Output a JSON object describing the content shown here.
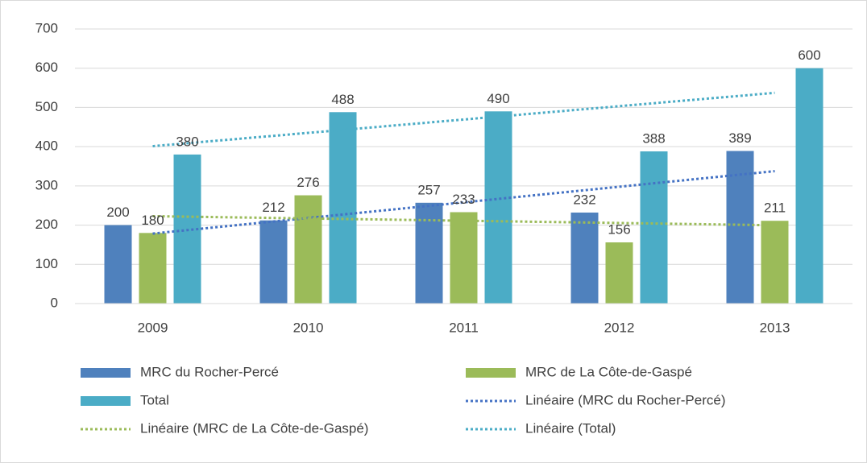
{
  "chart_data": {
    "type": "bar",
    "categories": [
      "2009",
      "2010",
      "2011",
      "2012",
      "2013"
    ],
    "series": [
      {
        "name": "MRC du Rocher-Percé",
        "color": "#4f81bd",
        "values": [
          200,
          212,
          257,
          232,
          389
        ]
      },
      {
        "name": "MRC de La Côte-de-Gaspé",
        "color": "#9bbb59",
        "values": [
          180,
          276,
          233,
          156,
          211
        ]
      },
      {
        "name": "Total",
        "color": "#4bacc6",
        "values": [
          380,
          488,
          490,
          388,
          600
        ]
      }
    ],
    "trendlines": [
      {
        "name": "Linéaire (MRC du Rocher-Percé)",
        "series": 0,
        "color": "#4472c4"
      },
      {
        "name": "Linéaire (MRC de La Côte-de-Gaspé)",
        "series": 1,
        "color": "#9bbb59"
      },
      {
        "name": "Linéaire (Total)",
        "series": 2,
        "color": "#4bacc6"
      }
    ],
    "ylim": [
      0,
      700
    ],
    "yticks": [
      0,
      100,
      200,
      300,
      400,
      500,
      600,
      700
    ],
    "grid": true,
    "legend": "bottom"
  }
}
